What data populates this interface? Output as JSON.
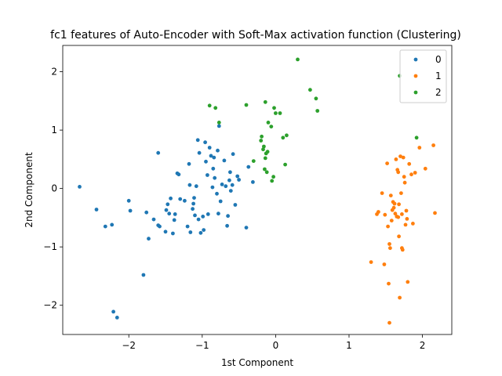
{
  "chart_data": {
    "type": "scatter",
    "title": "fc1 features of Auto-Encoder with Soft-Max activation function (Clustering)",
    "xlabel": "1st Component",
    "ylabel": "2nd Component",
    "xlim": [
      -2.9,
      2.4
    ],
    "ylim": [
      -2.5,
      2.45
    ],
    "xticks": [
      -2,
      -1,
      0,
      1,
      2
    ],
    "yticks": [
      -2,
      -1,
      0,
      1,
      2
    ],
    "grid": false,
    "legend_position": "top-right",
    "series": [
      {
        "name": "0",
        "color": "#1f77b4",
        "points": [
          [
            -2.67,
            0.03
          ],
          [
            -2.44,
            -0.36
          ],
          [
            -2.32,
            -0.65
          ],
          [
            -2.23,
            -0.62
          ],
          [
            -2.21,
            -2.11
          ],
          [
            -2.16,
            -2.21
          ],
          [
            -2.0,
            -0.21
          ],
          [
            -1.98,
            -0.38
          ],
          [
            -1.8,
            -1.48
          ],
          [
            -1.76,
            -0.41
          ],
          [
            -1.73,
            -0.86
          ],
          [
            -1.66,
            -0.53
          ],
          [
            -1.6,
            -0.63
          ],
          [
            -1.58,
            -0.65
          ],
          [
            -1.6,
            0.61
          ],
          [
            -1.5,
            -0.74
          ],
          [
            -1.49,
            -0.37
          ],
          [
            -1.47,
            -0.27
          ],
          [
            -1.45,
            -0.43
          ],
          [
            -1.43,
            -0.17
          ],
          [
            -1.4,
            -0.77
          ],
          [
            -1.38,
            -0.54
          ],
          [
            -1.37,
            -0.44
          ],
          [
            -1.34,
            0.26
          ],
          [
            -1.32,
            0.24
          ],
          [
            -1.3,
            -0.18
          ],
          [
            -1.24,
            -0.21
          ],
          [
            -1.2,
            -0.65
          ],
          [
            -1.18,
            0.42
          ],
          [
            -1.17,
            0.06
          ],
          [
            -1.16,
            -0.75
          ],
          [
            -1.13,
            -0.35
          ],
          [
            -1.12,
            -0.26
          ],
          [
            -1.11,
            -0.16
          ],
          [
            -1.1,
            -0.46
          ],
          [
            -1.08,
            0.04
          ],
          [
            -1.06,
            0.83
          ],
          [
            -1.05,
            -0.53
          ],
          [
            -1.04,
            0.61
          ],
          [
            -1.02,
            -0.76
          ],
          [
            -0.99,
            -0.48
          ],
          [
            -0.98,
            -0.71
          ],
          [
            -0.96,
            0.79
          ],
          [
            -0.95,
            0.46
          ],
          [
            -0.93,
            0.23
          ],
          [
            -0.92,
            -0.44
          ],
          [
            -0.9,
            0.7
          ],
          [
            -0.88,
            0.56
          ],
          [
            -0.86,
            0.02
          ],
          [
            -0.85,
            0.34
          ],
          [
            -0.84,
            0.53
          ],
          [
            -0.83,
            0.18
          ],
          [
            -0.8,
            -0.09
          ],
          [
            -0.79,
            0.65
          ],
          [
            -0.78,
            -0.43
          ],
          [
            -0.77,
            1.07
          ],
          [
            -0.75,
            -0.22
          ],
          [
            -0.73,
            0.07
          ],
          [
            -0.7,
            0.48
          ],
          [
            -0.68,
            0.04
          ],
          [
            -0.66,
            -0.64
          ],
          [
            -0.65,
            -0.47
          ],
          [
            -0.63,
            0.14
          ],
          [
            -0.62,
            0.28
          ],
          [
            -0.61,
            -0.04
          ],
          [
            -0.59,
            0.06
          ],
          [
            -0.58,
            0.59
          ],
          [
            -0.55,
            -0.28
          ],
          [
            -0.52,
            0.21
          ],
          [
            -0.5,
            0.15
          ],
          [
            -0.4,
            -0.67
          ],
          [
            -0.37,
            0.37
          ],
          [
            -0.31,
            0.11
          ]
        ]
      },
      {
        "name": "1",
        "color": "#ff7f0e",
        "points": [
          [
            1.3,
            -1.26
          ],
          [
            1.38,
            -0.44
          ],
          [
            1.4,
            -0.4
          ],
          [
            1.45,
            -0.08
          ],
          [
            1.48,
            -1.3
          ],
          [
            1.49,
            -0.45
          ],
          [
            1.52,
            0.43
          ],
          [
            1.53,
            -0.65
          ],
          [
            1.54,
            -1.63
          ],
          [
            1.55,
            -2.3
          ],
          [
            1.55,
            -0.95
          ],
          [
            1.56,
            -1.02
          ],
          [
            1.57,
            -0.12
          ],
          [
            1.58,
            -0.55
          ],
          [
            1.59,
            -0.37
          ],
          [
            1.6,
            -0.23
          ],
          [
            1.61,
            -0.33
          ],
          [
            1.62,
            -0.26
          ],
          [
            1.63,
            -0.43
          ],
          [
            1.64,
            0.5
          ],
          [
            1.65,
            -0.48
          ],
          [
            1.66,
            0.32
          ],
          [
            1.67,
            0.28
          ],
          [
            1.68,
            -0.82
          ],
          [
            1.68,
            -0.27
          ],
          [
            1.69,
            -1.87
          ],
          [
            1.7,
            0.55
          ],
          [
            1.71,
            -0.08
          ],
          [
            1.72,
            -1.02
          ],
          [
            1.72,
            -0.44
          ],
          [
            1.73,
            -1.05
          ],
          [
            1.74,
            0.53
          ],
          [
            1.75,
            0.2
          ],
          [
            1.76,
            0.1
          ],
          [
            1.77,
            -0.62
          ],
          [
            1.78,
            -0.38
          ],
          [
            1.79,
            -0.52
          ],
          [
            1.8,
            -1.6
          ],
          [
            1.82,
            0.42
          ],
          [
            1.85,
            0.24
          ],
          [
            1.87,
            -0.6
          ],
          [
            1.9,
            0.27
          ],
          [
            1.96,
            0.7
          ],
          [
            2.04,
            0.34
          ],
          [
            2.15,
            0.74
          ],
          [
            2.17,
            -0.42
          ],
          [
            1.67,
            -0.49
          ]
        ]
      },
      {
        "name": "2",
        "color": "#2ca02c",
        "points": [
          [
            -0.9,
            1.42
          ],
          [
            -0.82,
            1.38
          ],
          [
            -0.77,
            1.13
          ],
          [
            -0.4,
            1.43
          ],
          [
            -0.3,
            0.47
          ],
          [
            -0.2,
            0.82
          ],
          [
            -0.19,
            0.89
          ],
          [
            -0.17,
            0.67
          ],
          [
            -0.16,
            0.72
          ],
          [
            -0.15,
            0.33
          ],
          [
            -0.14,
            0.52
          ],
          [
            -0.13,
            0.6
          ],
          [
            -0.14,
            1.48
          ],
          [
            -0.12,
            0.28
          ],
          [
            -0.11,
            0.63
          ],
          [
            -0.1,
            1.13
          ],
          [
            -0.06,
            1.06
          ],
          [
            -0.05,
            0.13
          ],
          [
            -0.03,
            0.2
          ],
          [
            -0.02,
            1.38
          ],
          [
            0.0,
            1.29
          ],
          [
            0.06,
            1.29
          ],
          [
            0.1,
            0.87
          ],
          [
            0.13,
            0.41
          ],
          [
            0.15,
            0.91
          ],
          [
            0.3,
            2.21
          ],
          [
            0.47,
            1.69
          ],
          [
            0.55,
            1.54
          ],
          [
            0.57,
            1.33
          ],
          [
            1.69,
            1.93
          ],
          [
            1.92,
            0.87
          ]
        ]
      }
    ]
  }
}
